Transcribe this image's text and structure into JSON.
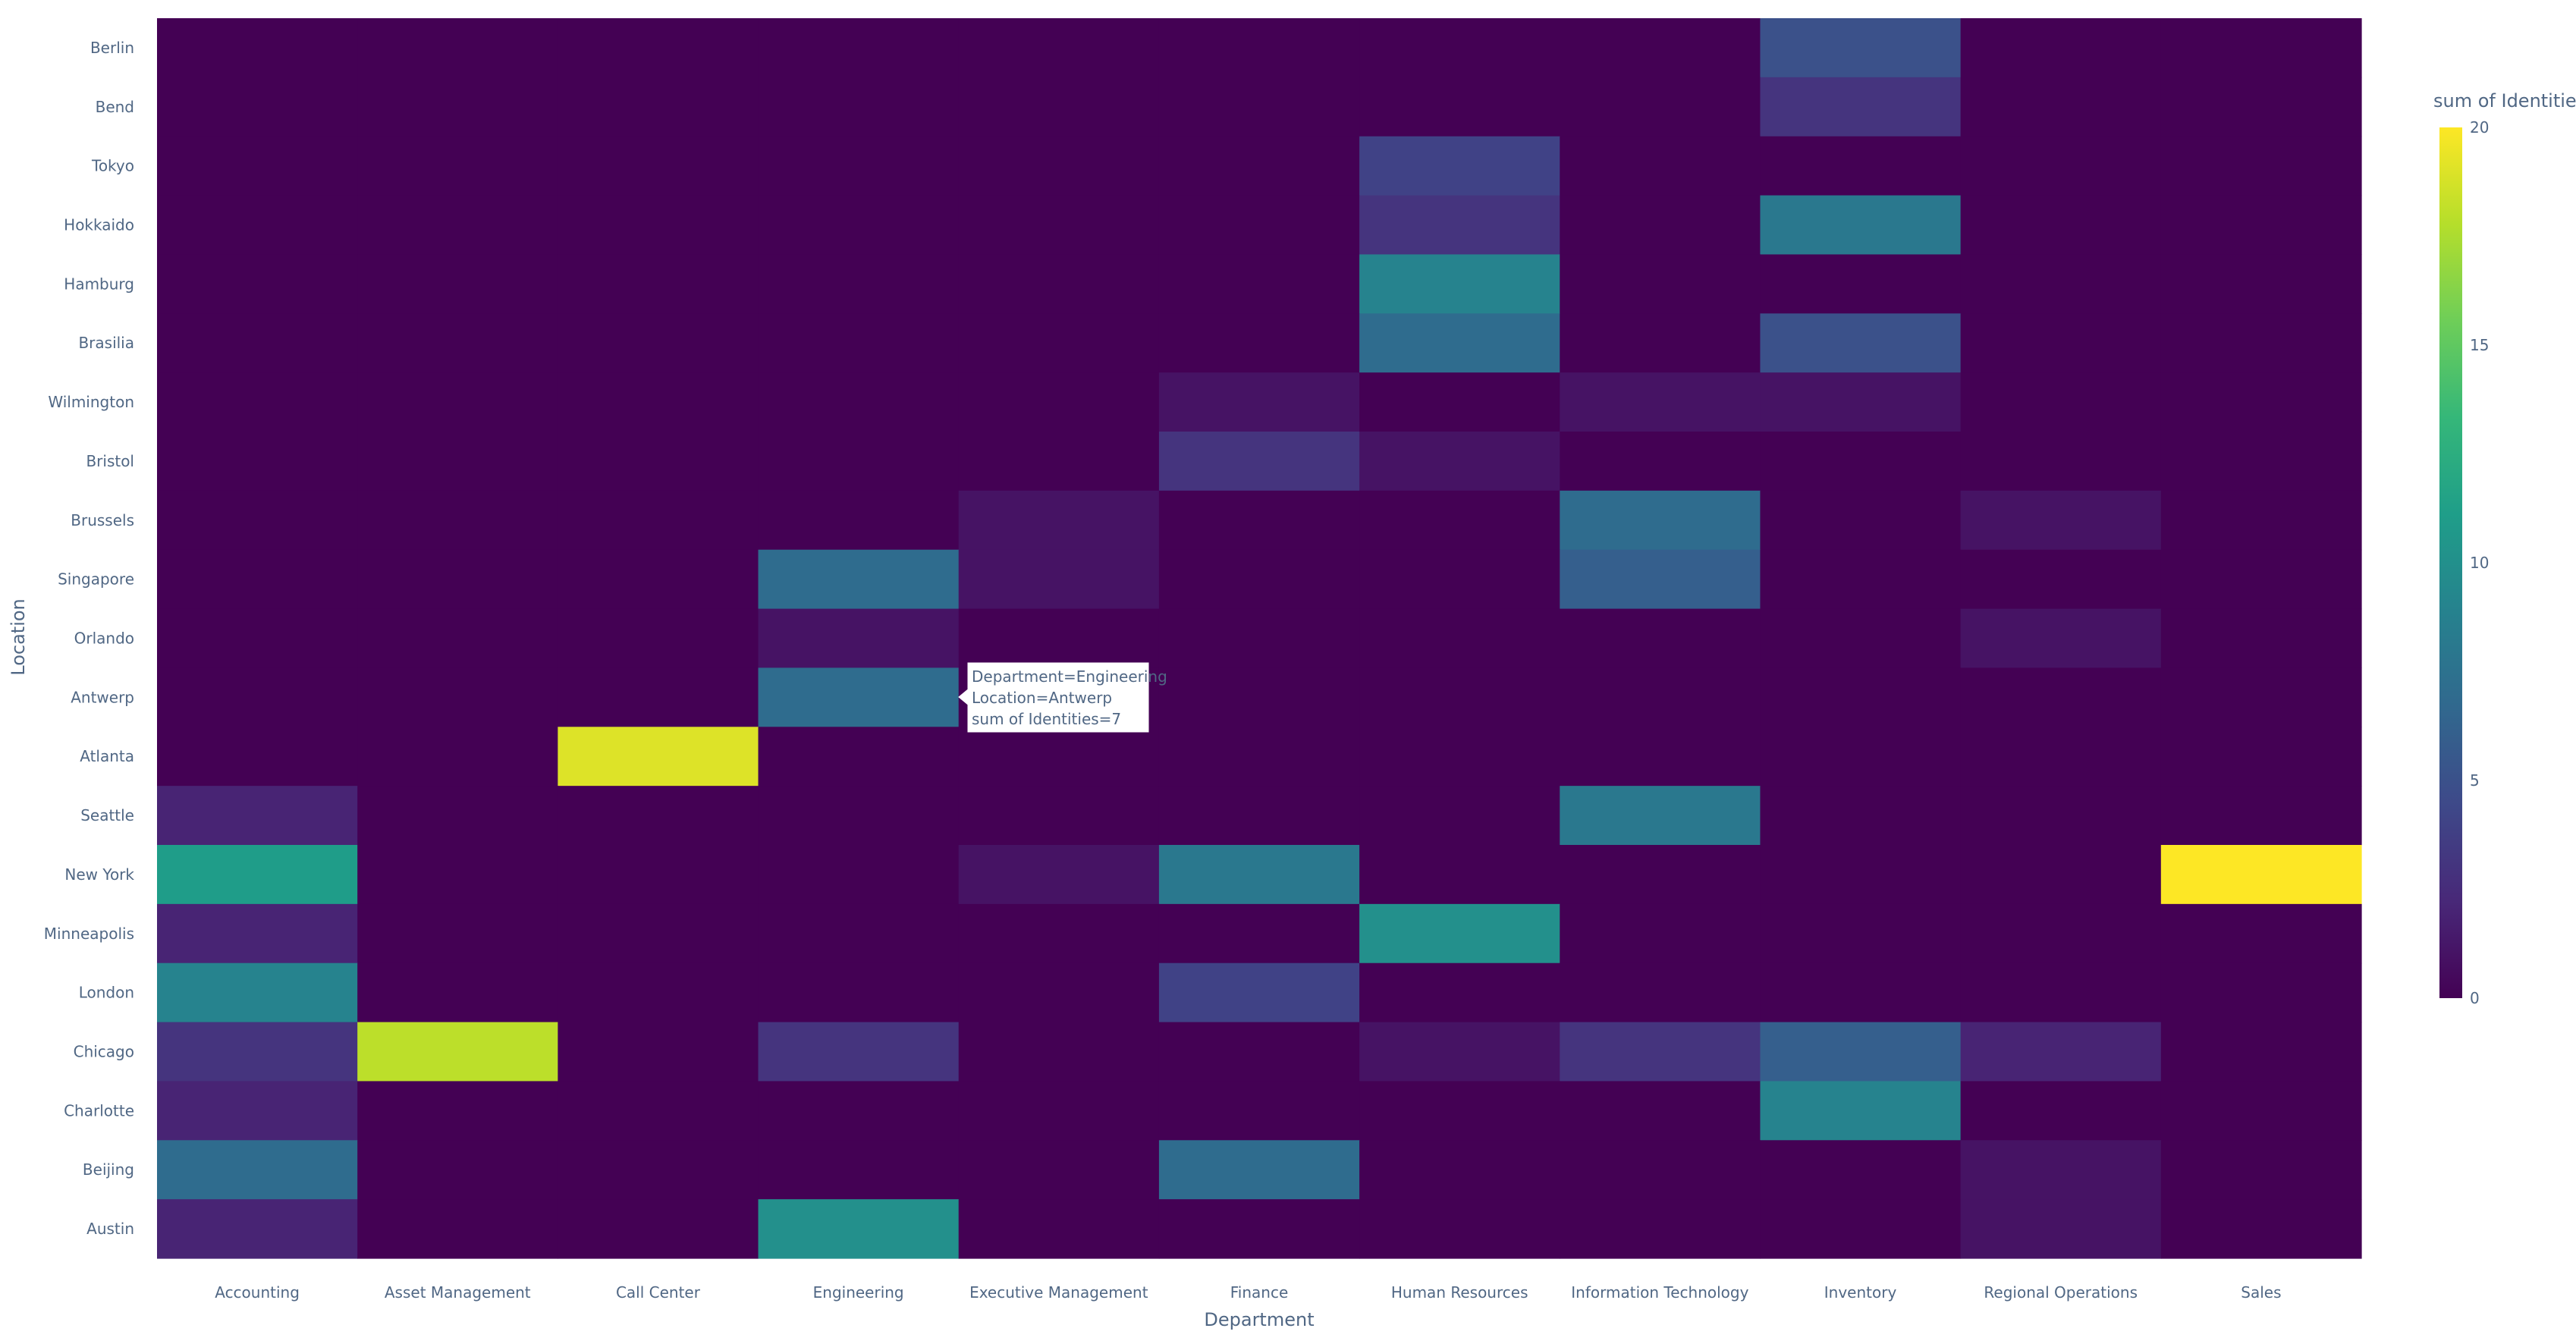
{
  "chart_data": {
    "type": "heatmap",
    "xlabel": "Department",
    "ylabel": "Location",
    "colorbar_title": "sum of Identities",
    "colorscale": "viridis",
    "zlim": [
      0,
      20
    ],
    "colorbar_ticks": [
      0,
      5,
      10,
      15,
      20
    ],
    "x": [
      "Accounting",
      "Asset Management",
      "Call Center",
      "Engineering",
      "Executive Management",
      "Finance",
      "Human Resources",
      "Information Technology",
      "Inventory",
      "Regional Operations",
      "Sales"
    ],
    "y": [
      "Berlin",
      "Bend",
      "Tokyo",
      "Hokkaido",
      "Hamburg",
      "Brasilia",
      "Wilmington",
      "Bristol",
      "Brussels",
      "Singapore",
      "Orlando",
      "Antwerp",
      "Atlanta",
      "Seattle",
      "New York",
      "Minneapolis",
      "London",
      "Chicago",
      "Charlotte",
      "Beijing",
      "Austin"
    ],
    "z": [
      [
        0,
        0,
        0,
        0,
        0,
        0,
        0,
        0,
        5,
        0,
        0
      ],
      [
        0,
        0,
        0,
        0,
        0,
        0,
        0,
        0,
        3,
        0,
        0
      ],
      [
        0,
        0,
        0,
        0,
        0,
        0,
        4,
        0,
        0,
        0,
        0
      ],
      [
        0,
        0,
        0,
        0,
        0,
        0,
        3,
        0,
        8,
        0,
        0
      ],
      [
        0,
        0,
        0,
        0,
        0,
        0,
        9,
        0,
        0,
        0,
        0
      ],
      [
        0,
        0,
        0,
        0,
        0,
        0,
        7,
        0,
        5,
        0,
        0
      ],
      [
        0,
        0,
        0,
        0,
        0,
        1,
        0,
        1,
        1,
        0,
        0
      ],
      [
        0,
        0,
        0,
        0,
        0,
        3,
        1,
        0,
        0,
        0,
        0
      ],
      [
        0,
        0,
        0,
        0,
        1,
        0,
        0,
        7,
        0,
        1,
        0
      ],
      [
        0,
        0,
        0,
        7,
        1,
        0,
        0,
        6,
        0,
        0,
        0
      ],
      [
        0,
        0,
        0,
        1,
        0,
        0,
        0,
        0,
        0,
        1,
        0
      ],
      [
        0,
        0,
        0,
        7,
        0,
        0,
        0,
        0,
        0,
        0,
        0
      ],
      [
        0,
        0,
        19,
        0,
        0,
        0,
        0,
        0,
        0,
        0,
        0
      ],
      [
        2,
        0,
        0,
        0,
        0,
        0,
        0,
        8,
        0,
        0,
        0
      ],
      [
        11,
        0,
        0,
        0,
        1,
        8,
        0,
        0,
        0,
        0,
        20
      ],
      [
        2,
        0,
        0,
        0,
        0,
        0,
        10,
        0,
        0,
        0,
        0
      ],
      [
        9,
        0,
        0,
        0,
        0,
        4,
        0,
        0,
        0,
        0,
        0
      ],
      [
        3,
        18,
        0,
        3,
        0,
        0,
        1,
        3,
        6,
        2,
        0
      ],
      [
        2,
        0,
        0,
        0,
        0,
        0,
        0,
        0,
        9,
        0,
        0
      ],
      [
        7,
        0,
        0,
        0,
        0,
        7,
        0,
        0,
        0,
        1,
        0
      ],
      [
        2,
        0,
        0,
        10,
        0,
        0,
        0,
        0,
        0,
        1,
        0
      ]
    ],
    "hover": {
      "lines": [
        "Department=Engineering",
        "Location=Antwerp",
        "sum of Identities=7"
      ]
    }
  }
}
